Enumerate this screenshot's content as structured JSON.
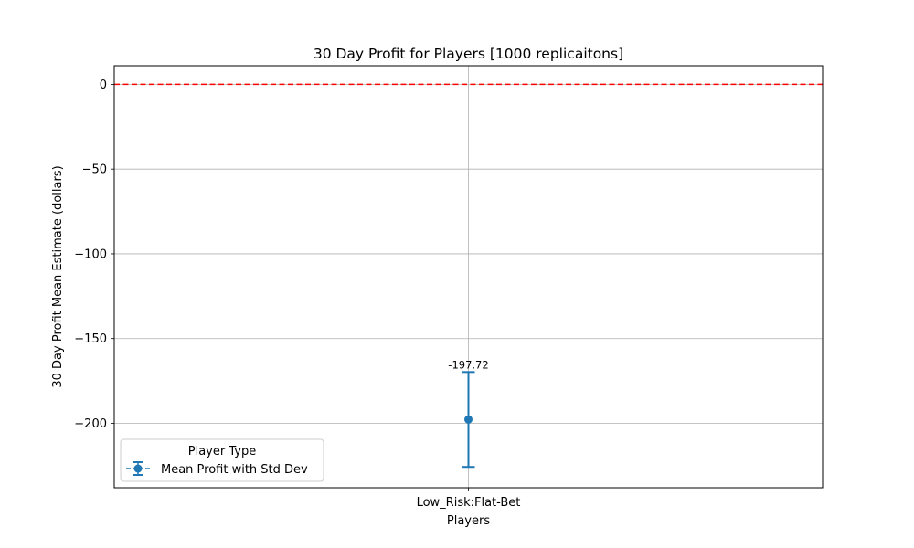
{
  "chart_data": {
    "type": "errorbar",
    "title": "30 Day Profit for Players [1000 replicaitons]",
    "xlabel": "Players",
    "ylabel": "30 Day Profit Mean Estimate (dollars)",
    "categories": [
      "Low_Risk:Flat-Bet"
    ],
    "series": [
      {
        "name": "Mean Profit with Std Dev",
        "values": [
          -197.72
        ],
        "std_dev": [
          28.0
        ],
        "color": "#1f77b4",
        "value_labels": [
          "-197.72"
        ]
      }
    ],
    "reference_line": {
      "y": 0,
      "color": "#ff0000",
      "style": "dashed"
    },
    "ylim": [
      -238,
      11
    ],
    "yticks": [
      0,
      -50,
      -100,
      -150,
      -200
    ],
    "ytick_labels": [
      "0",
      "−50",
      "−100",
      "−150",
      "−200"
    ],
    "grid": true,
    "legend": {
      "title": "Player Type",
      "placement": "lower-left",
      "entries": [
        "Mean Profit with Std Dev"
      ]
    }
  }
}
